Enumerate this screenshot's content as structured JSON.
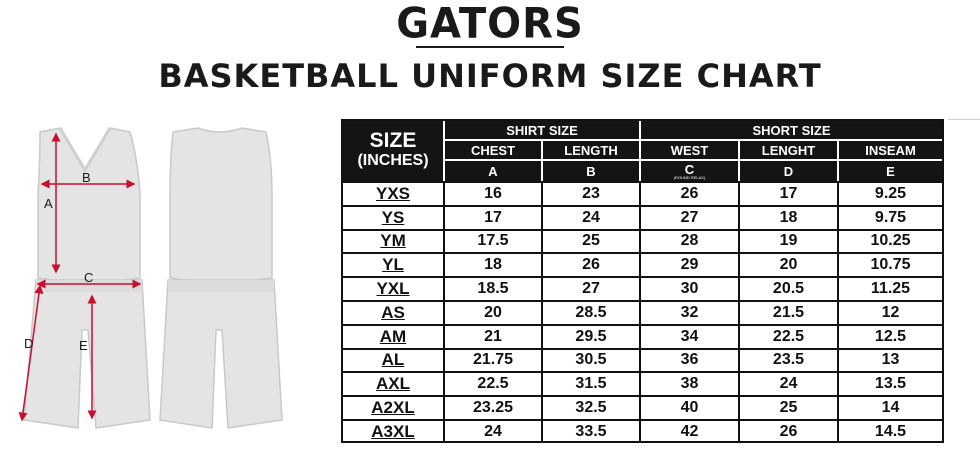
{
  "title": "GATORS",
  "subtitle": "BASKETBALL UNIFORM SIZE CHART",
  "diagram": {
    "labels": {
      "a": "A",
      "b": "B",
      "c": "C",
      "d": "D",
      "e": "E"
    },
    "accent_color": "#c8102e"
  },
  "table": {
    "size_header_line1": "SIZE",
    "size_header_line2": "(INCHES)",
    "groups": {
      "shirt": "SHIRT SIZE",
      "short": "SHORT SIZE"
    },
    "columns": [
      {
        "name": "CHEST",
        "letter": "A",
        "note": ""
      },
      {
        "name": "LENGTH",
        "letter": "B",
        "note": ""
      },
      {
        "name": "WEST",
        "letter": "C",
        "note": "(ROUND RELAX)"
      },
      {
        "name": "LENGHT",
        "letter": "D",
        "note": ""
      },
      {
        "name": "INSEAM",
        "letter": "E",
        "note": ""
      }
    ],
    "rows": [
      [
        "YXS",
        "16",
        "23",
        "26",
        "17",
        "9.25"
      ],
      [
        "YS",
        "17",
        "24",
        "27",
        "18",
        "9.75"
      ],
      [
        "YM",
        "17.5",
        "25",
        "28",
        "19",
        "10.25"
      ],
      [
        "YL",
        "18",
        "26",
        "29",
        "20",
        "10.75"
      ],
      [
        "YXL",
        "18.5",
        "27",
        "30",
        "20.5",
        "11.25"
      ],
      [
        "AS",
        "20",
        "28.5",
        "32",
        "21.5",
        "12"
      ],
      [
        "AM",
        "21",
        "29.5",
        "34",
        "22.5",
        "12.5"
      ],
      [
        "AL",
        "21.75",
        "30.5",
        "36",
        "23.5",
        "13"
      ],
      [
        "AXL",
        "22.5",
        "31.5",
        "38",
        "24",
        "13.5"
      ],
      [
        "A2XL",
        "23.25",
        "32.5",
        "40",
        "25",
        "14"
      ],
      [
        "A3XL",
        "24",
        "33.5",
        "42",
        "26",
        "14.5"
      ]
    ]
  }
}
